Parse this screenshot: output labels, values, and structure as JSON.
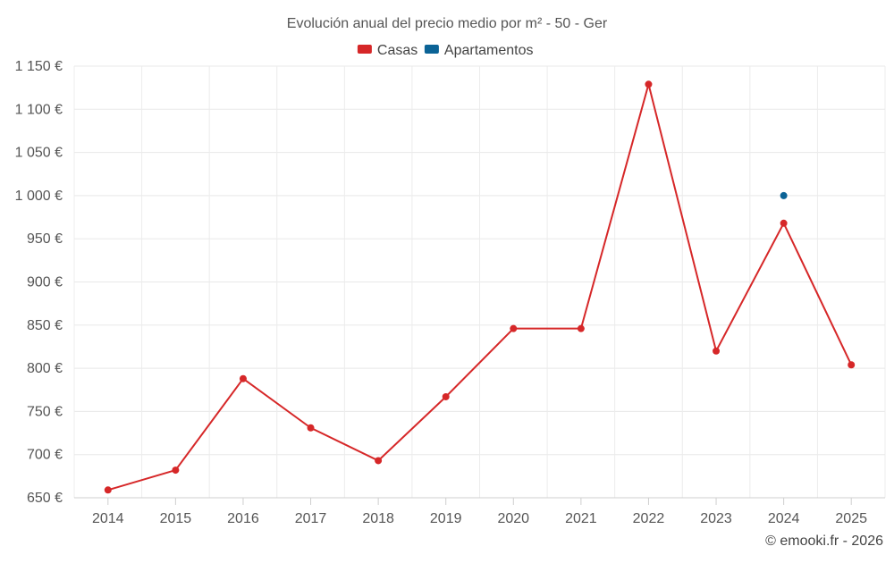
{
  "chart_data": {
    "type": "line",
    "title": "Evolución anual del precio medio por m² - 50 - Ger",
    "categories": [
      "2014",
      "2015",
      "2016",
      "2017",
      "2018",
      "2019",
      "2020",
      "2021",
      "2022",
      "2023",
      "2024",
      "2025"
    ],
    "ylim": [
      650,
      1150
    ],
    "yticks": [
      650,
      700,
      750,
      800,
      850,
      900,
      950,
      1000,
      1050,
      1100,
      1150
    ],
    "ytick_labels": [
      "650 €",
      "700 €",
      "750 €",
      "800 €",
      "850 €",
      "900 €",
      "950 €",
      "1 000 €",
      "1 050 €",
      "1 100 €",
      "1 150 €"
    ],
    "grid": true,
    "legend_position": "top-center",
    "series": [
      {
        "name": "Casas",
        "color": "#d62728",
        "values": [
          659,
          682,
          788,
          731,
          693,
          767,
          846,
          846,
          1129,
          820,
          968,
          804
        ]
      },
      {
        "name": "Apartamentos",
        "color": "#0b6396",
        "values": [
          null,
          null,
          null,
          null,
          null,
          null,
          null,
          null,
          null,
          null,
          1000,
          null
        ]
      }
    ],
    "credit": "© emooki.fr - 2026"
  }
}
